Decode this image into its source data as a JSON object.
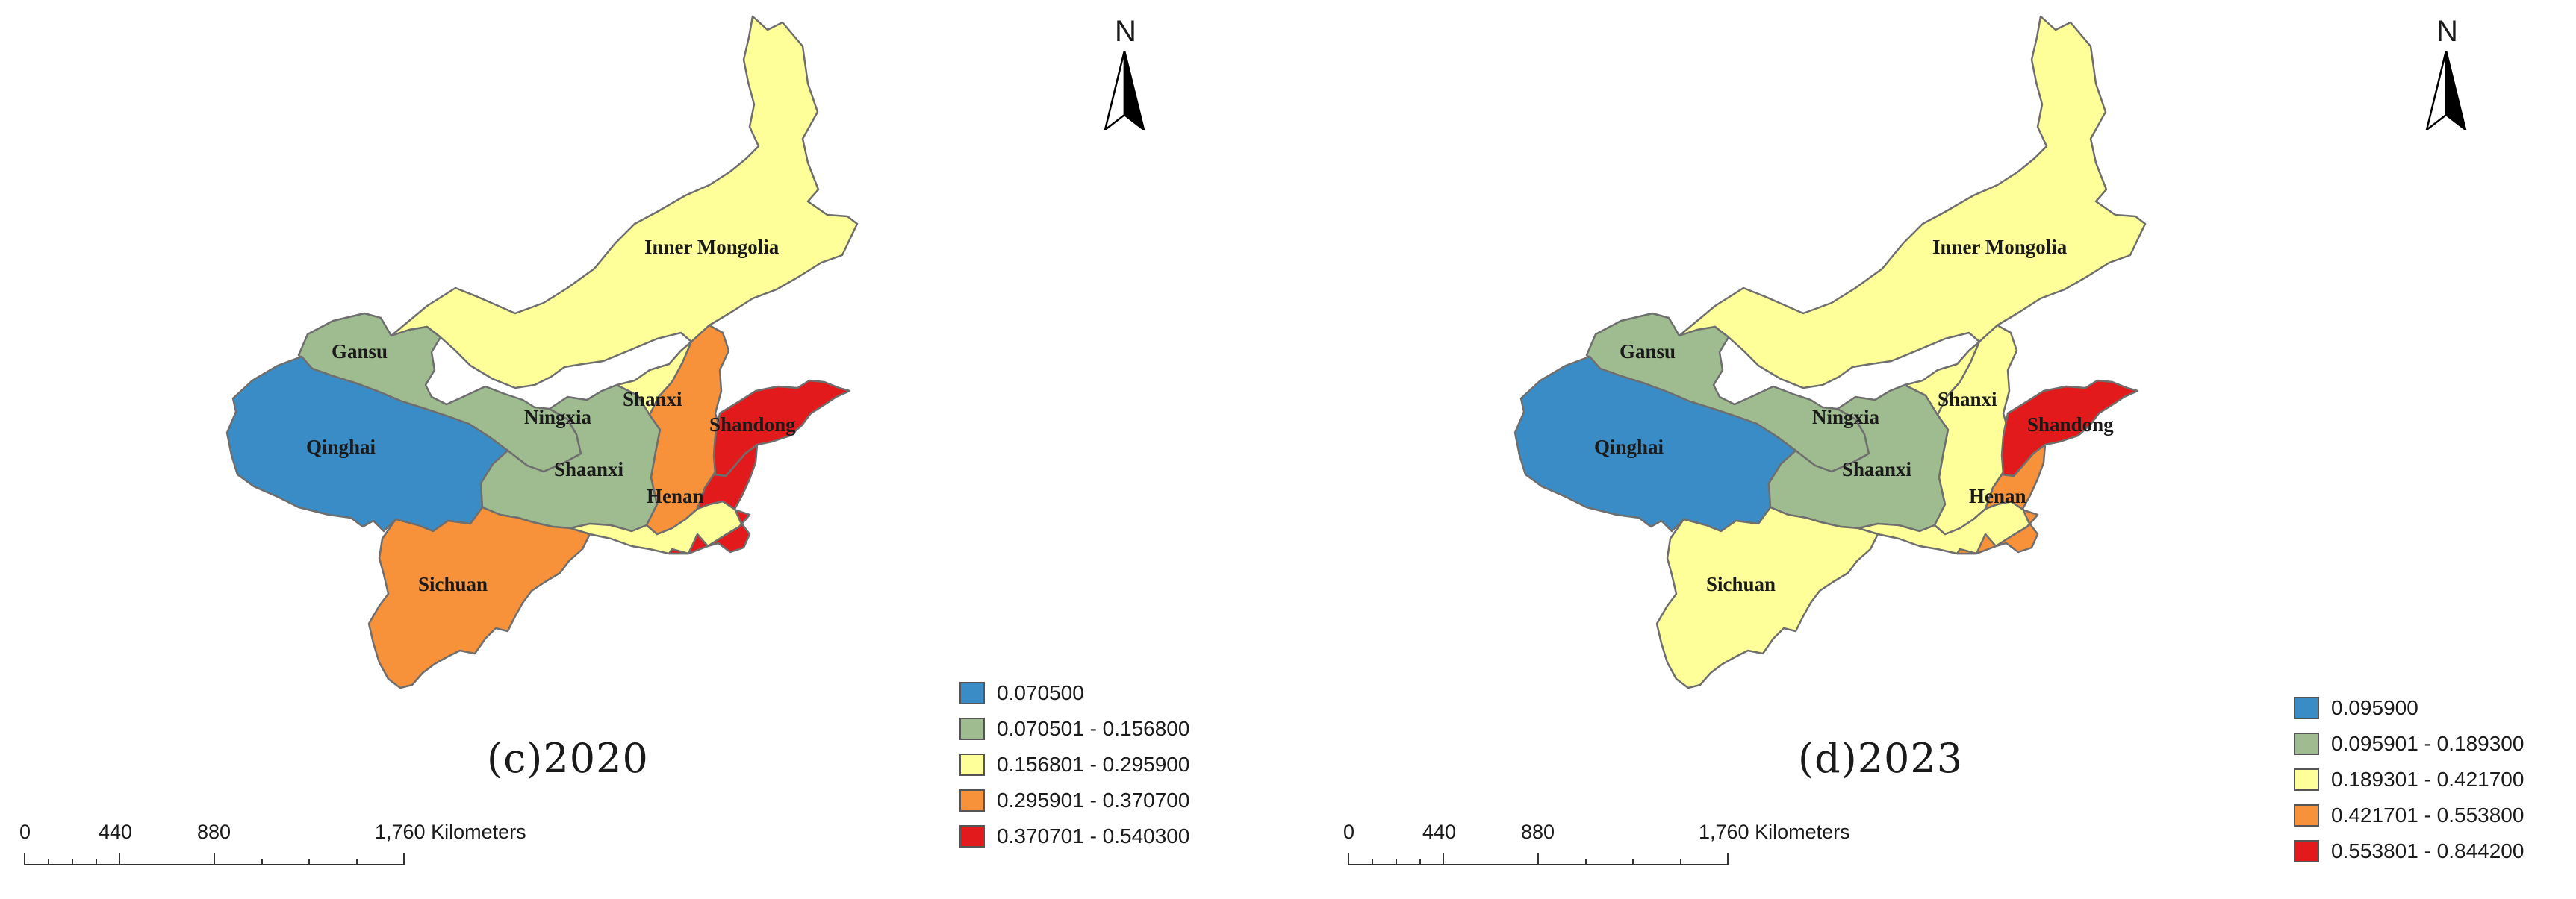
{
  "panels": [
    {
      "caption": "(c)2020",
      "north": "N",
      "labels": {
        "inner_mongolia": "Inner Mongolia",
        "gansu": "Gansu",
        "qinghai": "Qinghai",
        "ningxia": "Ningxia",
        "shanxi": "Shanxi",
        "shaanxi": "Shaanxi",
        "shandong": "Shandong",
        "henan": "Henan",
        "sichuan": "Sichuan"
      },
      "fills": {
        "inner_mongolia": "#ffff99",
        "gansu": "#9ebc8f",
        "qinghai": "#3a8cc6",
        "ningxia": "#9ebc8f",
        "shanxi": "#f7923a",
        "shaanxi": "#ffff99",
        "shandong": "#e31a1c",
        "henan": "#e31a1c",
        "sichuan": "#f7923a"
      },
      "legend": [
        {
          "label": "0.070500",
          "color": "#3a8cc6"
        },
        {
          "label": "0.070501 - 0.156800",
          "color": "#9ebc8f"
        },
        {
          "label": "0.156801 - 0.295900",
          "color": "#ffff99"
        },
        {
          "label": "0.295901 - 0.370700",
          "color": "#f7923a"
        },
        {
          "label": "0.370701 - 0.540300",
          "color": "#e31a1c"
        }
      ],
      "scale": {
        "ticks": [
          "0",
          "440",
          "880",
          "1,760 Kilometers"
        ]
      }
    },
    {
      "caption": "(d)2023",
      "north": "N",
      "labels": {
        "inner_mongolia": "Inner Mongolia",
        "gansu": "Gansu",
        "qinghai": "Qinghai",
        "ningxia": "Ningxia",
        "shanxi": "Shanxi",
        "shaanxi": "Shaanxi",
        "shandong": "Shandong",
        "henan": "Henan",
        "sichuan": "Sichuan"
      },
      "fills": {
        "inner_mongolia": "#ffff99",
        "gansu": "#9ebc8f",
        "qinghai": "#3a8cc6",
        "ningxia": "#9ebc8f",
        "shanxi": "#ffff99",
        "shaanxi": "#ffff99",
        "shandong": "#e31a1c",
        "henan": "#f7923a",
        "sichuan": "#ffff99"
      },
      "legend": [
        {
          "label": "0.095900",
          "color": "#3a8cc6"
        },
        {
          "label": "0.095901 - 0.189300",
          "color": "#9ebc8f"
        },
        {
          "label": "0.189301 - 0.421700",
          "color": "#ffff99"
        },
        {
          "label": "0.421701 - 0.553800",
          "color": "#f7923a"
        },
        {
          "label": "0.553801 - 0.844200",
          "color": "#e31a1c"
        }
      ],
      "scale": {
        "ticks": [
          "0",
          "440",
          "880",
          "1,760 Kilometers"
        ]
      }
    }
  ]
}
